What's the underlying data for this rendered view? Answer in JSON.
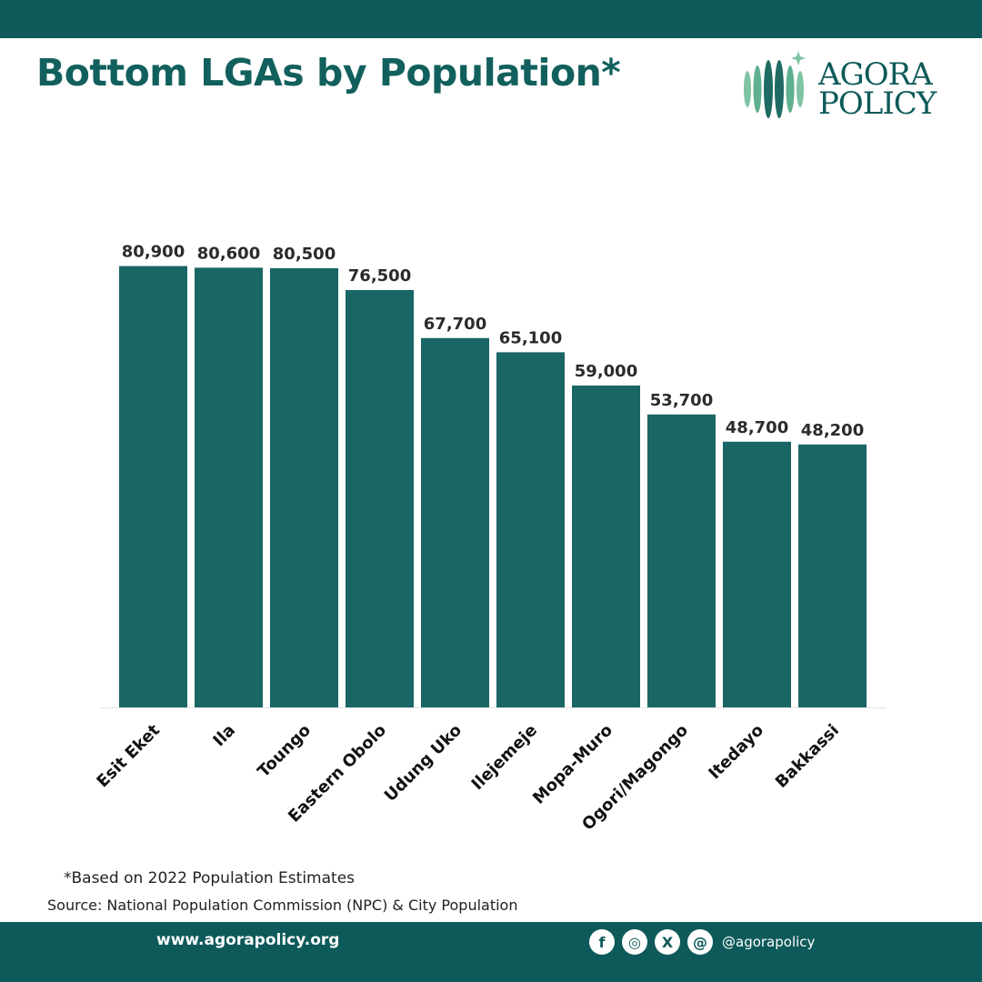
{
  "header": {
    "title": "Bottom LGAs by Population*"
  },
  "logo": {
    "line1": "AGORA",
    "line2": "POLICY"
  },
  "colors": {
    "brand": "#0e5a5a",
    "bar": "#1a6665",
    "title": "#12605d"
  },
  "chart_data": {
    "type": "bar",
    "title": "Bottom LGAs by Population*",
    "categories": [
      "Esit Eket",
      "Ila",
      "Toungo",
      "Eastern Obolo",
      "Udung Uko",
      "Ilejemeje",
      "Mopa-Muro",
      "Ogori/Magongo",
      "Itedayo",
      "Bakkassi"
    ],
    "values": [
      80900,
      80600,
      80500,
      76500,
      67700,
      65100,
      59000,
      53700,
      48700,
      48200
    ],
    "value_labels": [
      "80,900",
      "80,600",
      "80,500",
      "76,500",
      "67,700",
      "65,100",
      "59,000",
      "53,700",
      "48,700",
      "48,200"
    ],
    "xlabel": "",
    "ylabel": "",
    "ylim": [
      0,
      100000
    ],
    "grid": false,
    "legend": "none"
  },
  "notes": {
    "footnote": "*Based on 2022 Population Estimates",
    "source": "Source: National Population Commission (NPC) & City Population"
  },
  "footer": {
    "website": "www.agorapolicy.org",
    "handle": "@agorapolicy",
    "social_icons": [
      "facebook-icon",
      "instagram-icon",
      "x-icon",
      "threads-icon"
    ],
    "social_glyphs": [
      "f",
      "◎",
      "X",
      "@"
    ]
  }
}
